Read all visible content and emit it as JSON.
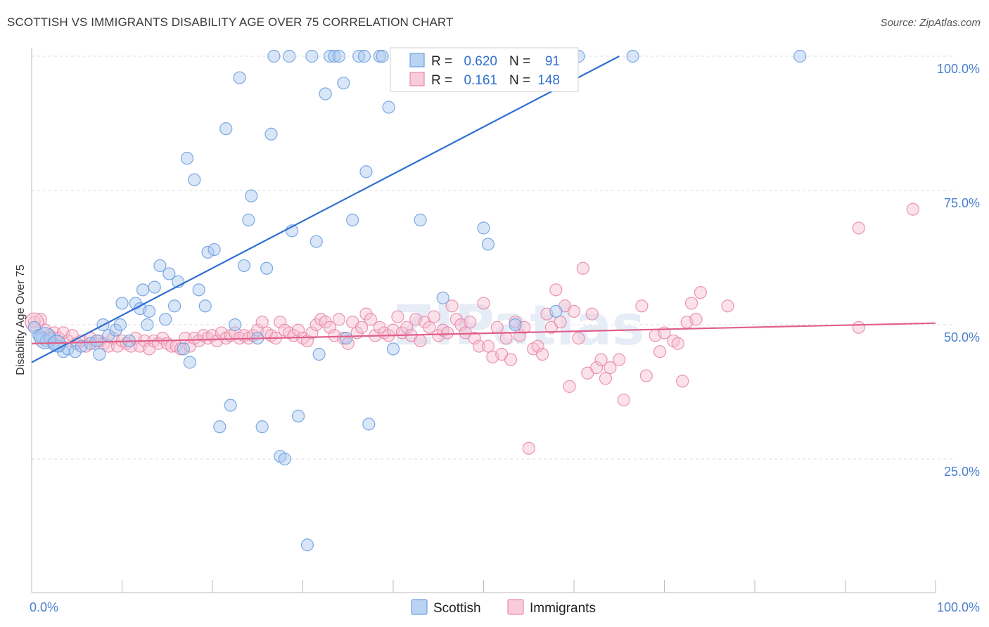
{
  "header": {
    "title": "SCOTTISH VS IMMIGRANTS DISABILITY AGE OVER 75 CORRELATION CHART",
    "source": "Source: ZipAtlas.com"
  },
  "watermark": "ZIPatlas",
  "colors": {
    "scottish": "#6fa0e0",
    "scottish_fill": "#a9c8f0",
    "scottish_line": "#2f6fd0",
    "immigrants": "#e98aaa",
    "immigrants_fill": "#f6bfd0",
    "immigrants_line": "#e0608a",
    "tick_label": "#4a7fcf"
  },
  "legend": {
    "rows": [
      {
        "r_label": "R =",
        "r_value": "0.620",
        "n_label": "N =",
        "n_value": "91"
      },
      {
        "r_label": "R =",
        "r_value": "0.161",
        "n_label": "N =",
        "n_value": "148"
      }
    ]
  },
  "chart_data": {
    "type": "scatter",
    "title": "SCOTTISH VS IMMIGRANTS DISABILITY AGE OVER 75 CORRELATION CHART",
    "xlabel": "",
    "ylabel": "Disability Age Over 75",
    "xlim": [
      0,
      100
    ],
    "ylim": [
      0,
      100
    ],
    "x_tick_labels": [
      "0.0%",
      "100.0%"
    ],
    "y_ticks": [
      25,
      50,
      75,
      100
    ],
    "y_tick_labels": [
      "25.0%",
      "50.0%",
      "75.0%",
      "100.0%"
    ],
    "grid": true,
    "legend_position": "top-center",
    "series": [
      {
        "name": "Scottish",
        "r": 0.62,
        "n": 91,
        "trend": [
          [
            0,
            43.0
          ],
          [
            65,
            100.0
          ]
        ],
        "points": [
          [
            0.3,
            49.5,
            1
          ],
          [
            0.8,
            48.0,
            1
          ],
          [
            1.2,
            47.5,
            1
          ],
          [
            1.6,
            47.0,
            1
          ],
          [
            2.0,
            47.5,
            1
          ],
          [
            2.4,
            46.5,
            1
          ],
          [
            3.0,
            46.0,
            1
          ],
          [
            3.5,
            45.0,
            1
          ],
          [
            4.0,
            45.5,
            1
          ],
          [
            4.8,
            45.0,
            1
          ],
          [
            5.5,
            46.0,
            1
          ],
          [
            6.5,
            46.5,
            1
          ],
          [
            7.2,
            47.0,
            1
          ],
          [
            7.5,
            44.5,
            1
          ],
          [
            7.9,
            50.0,
            1
          ],
          [
            8.5,
            48.0,
            1
          ],
          [
            9.3,
            49.0,
            1
          ],
          [
            9.8,
            50.0,
            1
          ],
          [
            10.0,
            54.0,
            1
          ],
          [
            10.8,
            47.0,
            1
          ],
          [
            11.5,
            54.0,
            1
          ],
          [
            12.0,
            53.0,
            1
          ],
          [
            12.3,
            56.5,
            1
          ],
          [
            12.8,
            50.0,
            1
          ],
          [
            13.0,
            52.5,
            1
          ],
          [
            13.6,
            57.0,
            1
          ],
          [
            14.2,
            61.0,
            1
          ],
          [
            14.8,
            51.0,
            1
          ],
          [
            15.2,
            59.5,
            1
          ],
          [
            15.8,
            53.5,
            1
          ],
          [
            16.2,
            58.0,
            1
          ],
          [
            16.8,
            45.5,
            1
          ],
          [
            17.5,
            43.0,
            1
          ],
          [
            17.2,
            81.0,
            1
          ],
          [
            18.0,
            77.0,
            1
          ],
          [
            18.5,
            56.5,
            1
          ],
          [
            19.2,
            53.5,
            1
          ],
          [
            19.5,
            63.5,
            1
          ],
          [
            20.2,
            64.0,
            1
          ],
          [
            20.8,
            31.0,
            1
          ],
          [
            21.5,
            86.5,
            1
          ],
          [
            22.0,
            35.0,
            1
          ],
          [
            22.5,
            50.0,
            1
          ],
          [
            23.0,
            96.0,
            1
          ],
          [
            23.5,
            61.0,
            1
          ],
          [
            24.0,
            69.5,
            1
          ],
          [
            24.3,
            74.0,
            1
          ],
          [
            25.0,
            47.5,
            1
          ],
          [
            25.5,
            31.0,
            1
          ],
          [
            26.0,
            60.5,
            1
          ],
          [
            26.5,
            85.5,
            1
          ],
          [
            26.8,
            100.0,
            1
          ],
          [
            27.5,
            25.5,
            1
          ],
          [
            28.0,
            25.0,
            1
          ],
          [
            28.5,
            100.0,
            1
          ],
          [
            28.8,
            67.5,
            1
          ],
          [
            29.5,
            33.0,
            1
          ],
          [
            30.5,
            9.0,
            1
          ],
          [
            31.0,
            100.0,
            1
          ],
          [
            31.5,
            65.5,
            1
          ],
          [
            31.8,
            44.5,
            1
          ],
          [
            32.5,
            93.0,
            1
          ],
          [
            33.0,
            100.0,
            1
          ],
          [
            33.5,
            100.0,
            1
          ],
          [
            34.0,
            100.0,
            1
          ],
          [
            34.5,
            95.0,
            1
          ],
          [
            34.8,
            47.5,
            1
          ],
          [
            35.5,
            69.5,
            1
          ],
          [
            36.2,
            100.0,
            1
          ],
          [
            36.8,
            100.0,
            1
          ],
          [
            37.0,
            78.5,
            1
          ],
          [
            37.3,
            31.5,
            1
          ],
          [
            38.5,
            100.0,
            1
          ],
          [
            38.8,
            100.0,
            1
          ],
          [
            39.5,
            90.5,
            1
          ],
          [
            40.0,
            45.5,
            1
          ],
          [
            42.0,
            100.0,
            1
          ],
          [
            43.0,
            69.5,
            1
          ],
          [
            44.0,
            100.0,
            1
          ],
          [
            45.5,
            55.0,
            1
          ],
          [
            47.5,
            100.0,
            1
          ],
          [
            49.0,
            100.0,
            1
          ],
          [
            50.0,
            68.0,
            1
          ],
          [
            50.5,
            65.0,
            1
          ],
          [
            52.0,
            100.0,
            1
          ],
          [
            53.5,
            50.0,
            1
          ],
          [
            55.0,
            100.0,
            1
          ],
          [
            58.0,
            52.5,
            1
          ],
          [
            60.5,
            100.0,
            1
          ],
          [
            66.5,
            100.0,
            1
          ],
          [
            85.0,
            100.0,
            1
          ]
        ]
      },
      {
        "name": "Immigrants",
        "r": 0.161,
        "n": 148,
        "trend": [
          [
            0,
            46.5
          ],
          [
            100,
            50.3
          ]
        ],
        "points": [
          [
            0.3,
            50.5,
            1
          ],
          [
            1.0,
            51.0,
            1
          ],
          [
            1.5,
            49.0,
            1
          ],
          [
            2.0,
            48.0,
            1
          ],
          [
            2.5,
            48.5,
            1
          ],
          [
            3.0,
            47.5,
            1
          ],
          [
            3.5,
            48.5,
            1
          ],
          [
            4.0,
            47.0,
            1
          ],
          [
            4.5,
            48.0,
            1
          ],
          [
            5.0,
            46.5,
            1
          ],
          [
            5.5,
            47.0,
            1
          ],
          [
            6.0,
            46.0,
            1
          ],
          [
            6.5,
            47.5,
            1
          ],
          [
            7.0,
            46.5,
            1
          ],
          [
            7.5,
            47.0,
            1
          ],
          [
            8.0,
            46.5,
            1
          ],
          [
            8.5,
            46.0,
            1
          ],
          [
            9.0,
            47.5,
            1
          ],
          [
            9.5,
            46.0,
            1
          ],
          [
            10.0,
            47.0,
            1
          ],
          [
            10.5,
            46.5,
            1
          ],
          [
            11.0,
            46.0,
            1
          ],
          [
            11.5,
            47.5,
            1
          ],
          [
            12.0,
            46.0,
            1
          ],
          [
            12.5,
            47.0,
            1
          ],
          [
            13.0,
            45.5,
            1
          ],
          [
            13.5,
            47.0,
            1
          ],
          [
            14.0,
            46.5,
            1
          ],
          [
            14.5,
            47.5,
            1
          ],
          [
            15.0,
            46.5,
            1
          ],
          [
            15.5,
            46.0,
            1
          ],
          [
            16.0,
            46.0,
            1
          ],
          [
            16.5,
            45.5,
            1
          ],
          [
            17.0,
            47.5,
            1
          ],
          [
            17.5,
            46.0,
            1
          ],
          [
            18.0,
            47.5,
            1
          ],
          [
            18.5,
            47.0,
            1
          ],
          [
            19.0,
            48.0,
            1
          ],
          [
            19.5,
            47.5,
            1
          ],
          [
            20.0,
            48.0,
            1
          ],
          [
            20.5,
            47.0,
            1
          ],
          [
            21.0,
            48.5,
            1
          ],
          [
            21.5,
            47.5,
            1
          ],
          [
            22.0,
            48.0,
            1
          ],
          [
            22.5,
            48.5,
            1
          ],
          [
            23.0,
            47.5,
            1
          ],
          [
            23.5,
            48.0,
            1
          ],
          [
            24.0,
            47.5,
            1
          ],
          [
            24.5,
            48.0,
            1
          ],
          [
            25.0,
            49.0,
            1
          ],
          [
            25.5,
            50.5,
            1
          ],
          [
            26.0,
            48.5,
            1
          ],
          [
            26.5,
            48.0,
            1
          ],
          [
            27.0,
            47.5,
            1
          ],
          [
            27.5,
            50.5,
            1
          ],
          [
            28.0,
            49.0,
            1
          ],
          [
            28.5,
            48.5,
            1
          ],
          [
            29.0,
            48.0,
            1
          ],
          [
            29.5,
            49.0,
            1
          ],
          [
            30.0,
            47.5,
            1
          ],
          [
            30.5,
            47.0,
            1
          ],
          [
            31.0,
            48.5,
            1
          ],
          [
            31.5,
            50.0,
            1
          ],
          [
            32.0,
            51.0,
            1
          ],
          [
            32.5,
            50.5,
            1
          ],
          [
            33.0,
            49.5,
            1
          ],
          [
            33.5,
            48.0,
            1
          ],
          [
            34.0,
            51.0,
            1
          ],
          [
            34.5,
            47.5,
            1
          ],
          [
            35.0,
            46.5,
            1
          ],
          [
            35.5,
            50.5,
            1
          ],
          [
            36.0,
            48.5,
            1
          ],
          [
            36.5,
            49.5,
            1
          ],
          [
            37.0,
            52.0,
            1
          ],
          [
            37.5,
            51.0,
            1
          ],
          [
            38.0,
            48.0,
            1
          ],
          [
            38.5,
            49.5,
            1
          ],
          [
            39.0,
            48.5,
            1
          ],
          [
            39.5,
            48.0,
            1
          ],
          [
            40.0,
            49.0,
            1
          ],
          [
            40.5,
            51.5,
            1
          ],
          [
            41.0,
            48.5,
            1
          ],
          [
            41.5,
            49.5,
            1
          ],
          [
            42.0,
            48.0,
            1
          ],
          [
            42.5,
            51.0,
            1
          ],
          [
            43.0,
            47.0,
            1
          ],
          [
            43.5,
            50.5,
            1
          ],
          [
            44.0,
            49.5,
            1
          ],
          [
            44.5,
            51.5,
            1
          ],
          [
            45.0,
            48.0,
            1
          ],
          [
            45.5,
            49.0,
            1
          ],
          [
            46.0,
            48.5,
            1
          ],
          [
            46.5,
            53.5,
            1
          ],
          [
            47.0,
            51.0,
            1
          ],
          [
            47.5,
            50.0,
            1
          ],
          [
            48.0,
            48.5,
            1
          ],
          [
            48.5,
            50.5,
            1
          ],
          [
            49.0,
            47.5,
            1
          ],
          [
            49.5,
            46.0,
            1
          ],
          [
            50.0,
            54.0,
            1
          ],
          [
            50.5,
            46.0,
            1
          ],
          [
            51.0,
            44.0,
            1
          ],
          [
            51.5,
            49.5,
            1
          ],
          [
            52.0,
            44.5,
            1
          ],
          [
            52.5,
            47.5,
            1
          ],
          [
            53.0,
            43.5,
            1
          ],
          [
            53.5,
            50.5,
            1
          ],
          [
            54.0,
            48.0,
            1
          ],
          [
            54.5,
            49.5,
            1
          ],
          [
            55.0,
            27.0,
            1
          ],
          [
            55.5,
            45.5,
            1
          ],
          [
            56.0,
            46.0,
            1
          ],
          [
            56.5,
            44.5,
            1
          ],
          [
            57.0,
            52.0,
            1
          ],
          [
            57.5,
            49.5,
            1
          ],
          [
            58.0,
            56.5,
            1
          ],
          [
            58.5,
            50.5,
            1
          ],
          [
            59.0,
            53.5,
            1
          ],
          [
            59.5,
            38.5,
            1
          ],
          [
            60.0,
            52.5,
            1
          ],
          [
            60.5,
            47.5,
            1
          ],
          [
            61.0,
            60.5,
            1
          ],
          [
            61.5,
            41.0,
            1
          ],
          [
            62.0,
            52.0,
            1
          ],
          [
            62.5,
            42.0,
            1
          ],
          [
            63.0,
            43.5,
            1
          ],
          [
            63.5,
            40.0,
            1
          ],
          [
            64.0,
            42.0,
            1
          ],
          [
            65.0,
            43.5,
            1
          ],
          [
            65.5,
            36.0,
            1
          ],
          [
            67.5,
            53.5,
            1
          ],
          [
            68.0,
            40.5,
            1
          ],
          [
            69.0,
            48.0,
            1
          ],
          [
            69.5,
            45.0,
            1
          ],
          [
            70.0,
            48.5,
            1
          ],
          [
            71.0,
            47.0,
            1
          ],
          [
            71.5,
            46.5,
            1
          ],
          [
            72.0,
            39.5,
            1
          ],
          [
            72.5,
            50.5,
            1
          ],
          [
            73.0,
            54.0,
            1
          ],
          [
            73.5,
            51.0,
            1
          ],
          [
            74.0,
            56.0,
            1
          ],
          [
            77.0,
            53.5,
            1
          ],
          [
            91.5,
            68.0,
            1
          ],
          [
            91.5,
            49.5,
            1
          ],
          [
            97.5,
            71.5,
            1
          ],
          [
            33.5,
            100.0,
            0
          ]
        ]
      }
    ]
  },
  "bottom_legend": {
    "items": [
      {
        "label": "Scottish"
      },
      {
        "label": "Immigrants"
      }
    ]
  }
}
